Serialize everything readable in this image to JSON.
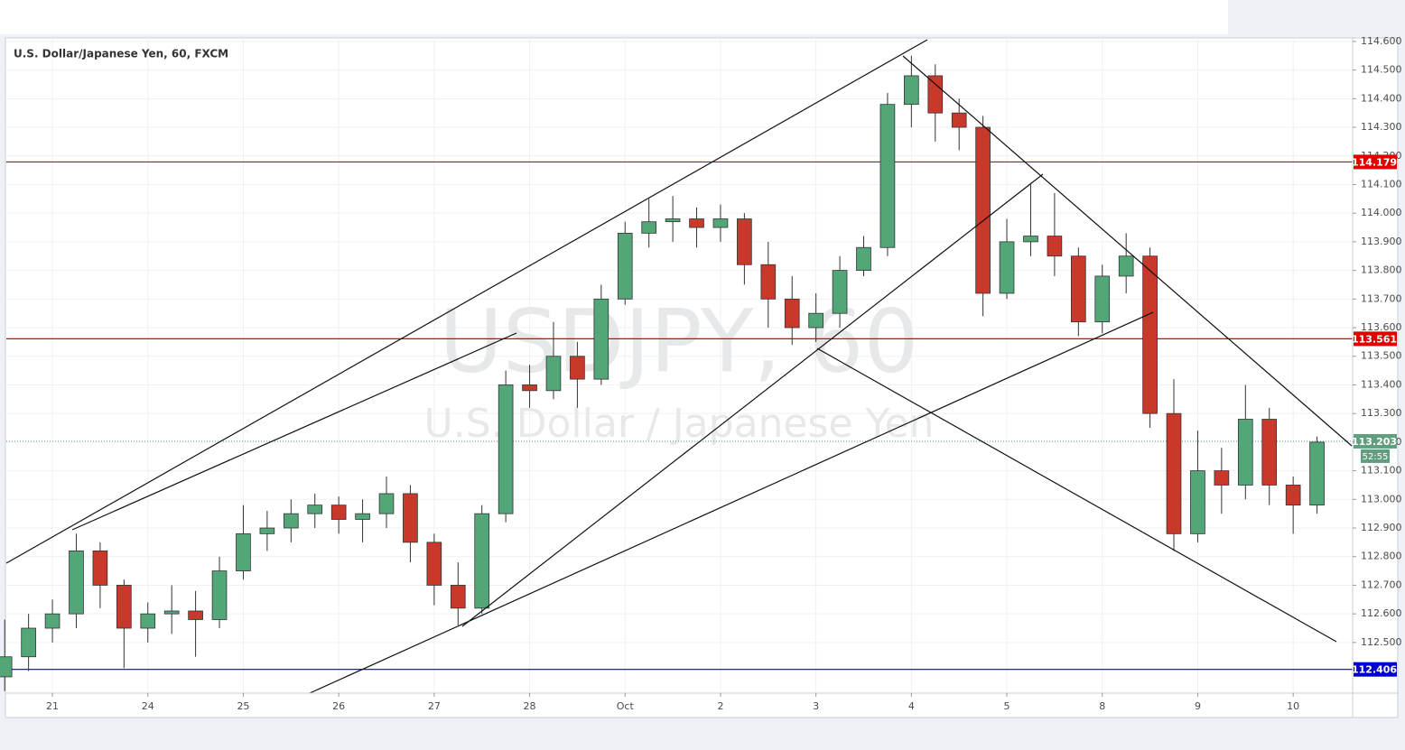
{
  "chart_data": {
    "type": "candlestick",
    "title": "U.S. Dollar/Japanese Yen, 60, FXCM",
    "watermark": {
      "symbol": "USDJPY, 60",
      "name": "U.S. Dollar / Japanese Yen"
    },
    "up_color": "#53a677",
    "down_color": "#c8382b",
    "x": [
      -0.5,
      -0.25,
      0,
      0.25,
      0.5,
      0.75,
      1,
      1.25,
      1.5,
      1.75,
      2,
      2.25,
      2.5,
      2.75,
      3,
      3.25,
      3.5,
      3.75,
      4,
      4.25,
      4.5,
      4.75,
      5,
      5.25,
      5.5,
      5.75,
      6,
      6.25,
      6.5,
      6.75,
      7,
      7.25,
      7.5,
      7.75,
      8,
      8.25,
      8.5,
      8.75,
      9,
      9.25,
      9.5,
      9.75,
      10,
      10.25,
      10.5,
      10.75,
      11,
      11.25,
      11.5,
      11.75,
      12,
      12.25,
      12.5,
      12.75,
      13,
      13.25
    ],
    "open": [
      112.38,
      112.45,
      112.55,
      112.6,
      112.82,
      112.7,
      112.55,
      112.6,
      112.61,
      112.58,
      112.75,
      112.88,
      112.9,
      112.95,
      112.98,
      112.93,
      112.95,
      113.02,
      112.85,
      112.7,
      112.62,
      112.95,
      113.4,
      113.38,
      113.5,
      113.42,
      113.7,
      113.93,
      113.97,
      113.98,
      113.95,
      113.98,
      113.82,
      113.7,
      113.6,
      113.65,
      113.8,
      113.88,
      114.38,
      114.48,
      114.35,
      114.3,
      113.72,
      113.9,
      113.92,
      113.85,
      113.62,
      113.78,
      113.85,
      113.3,
      112.88,
      113.1,
      113.05,
      113.28,
      113.05,
      112.98
    ],
    "high": [
      112.58,
      112.6,
      112.65,
      112.88,
      112.85,
      112.72,
      112.64,
      112.7,
      112.68,
      112.8,
      112.98,
      112.96,
      113.0,
      113.02,
      113.01,
      113.0,
      113.08,
      113.05,
      112.88,
      112.78,
      112.98,
      113.45,
      113.47,
      113.62,
      113.55,
      113.75,
      113.97,
      114.05,
      114.06,
      114.02,
      114.03,
      114.0,
      113.9,
      113.78,
      113.72,
      113.85,
      113.92,
      114.42,
      114.55,
      114.52,
      114.4,
      114.34,
      113.98,
      114.1,
      114.07,
      113.88,
      113.82,
      113.93,
      113.88,
      113.42,
      113.24,
      113.18,
      113.4,
      113.32,
      113.08,
      113.22
    ],
    "low": [
      112.33,
      112.4,
      112.5,
      112.55,
      112.62,
      112.41,
      112.5,
      112.53,
      112.45,
      112.55,
      112.72,
      112.82,
      112.85,
      112.9,
      112.88,
      112.85,
      112.9,
      112.78,
      112.63,
      112.56,
      112.6,
      112.92,
      113.32,
      113.35,
      113.32,
      113.4,
      113.68,
      113.88,
      113.9,
      113.88,
      113.9,
      113.75,
      113.6,
      113.54,
      113.55,
      113.6,
      113.78,
      113.85,
      114.3,
      114.25,
      114.22,
      113.64,
      113.7,
      113.85,
      113.78,
      113.57,
      113.58,
      113.72,
      113.25,
      112.82,
      112.85,
      112.95,
      113.0,
      112.98,
      112.88,
      112.95
    ],
    "close": [
      112.45,
      112.55,
      112.6,
      112.82,
      112.7,
      112.55,
      112.6,
      112.61,
      112.58,
      112.75,
      112.88,
      112.9,
      112.95,
      112.98,
      112.93,
      112.95,
      113.02,
      112.85,
      112.7,
      112.62,
      112.95,
      113.4,
      113.38,
      113.5,
      113.42,
      113.7,
      113.93,
      113.97,
      113.98,
      113.95,
      113.98,
      113.82,
      113.7,
      113.6,
      113.65,
      113.8,
      113.88,
      114.38,
      114.48,
      114.35,
      114.3,
      113.72,
      113.9,
      113.92,
      113.85,
      113.62,
      113.78,
      113.85,
      113.3,
      112.88,
      113.1,
      113.05,
      113.28,
      113.05,
      112.98,
      113.2
    ],
    "xlim": [
      -0.483,
      13.623
    ],
    "xticks": [
      {
        "value": 0,
        "label": "21"
      },
      {
        "value": 1,
        "label": "24"
      },
      {
        "value": 2,
        "label": "25"
      },
      {
        "value": 3,
        "label": "26"
      },
      {
        "value": 4,
        "label": "27"
      },
      {
        "value": 5,
        "label": "28"
      },
      {
        "value": 6,
        "label": "Oct"
      },
      {
        "value": 7,
        "label": "2"
      },
      {
        "value": 8,
        "label": "3"
      },
      {
        "value": 9,
        "label": "4"
      },
      {
        "value": 10,
        "label": "5"
      },
      {
        "value": 11,
        "label": "8"
      },
      {
        "value": 12,
        "label": "9"
      },
      {
        "value": 13,
        "label": "10"
      }
    ],
    "ylim": [
      112.323,
      114.606
    ],
    "yticks": [
      {
        "value": 112.5,
        "label": "112.500"
      },
      {
        "value": 112.6,
        "label": "112.600"
      },
      {
        "value": 112.7,
        "label": "112.700"
      },
      {
        "value": 112.8,
        "label": "112.800"
      },
      {
        "value": 112.9,
        "label": "112.900"
      },
      {
        "value": 113.0,
        "label": "113.000"
      },
      {
        "value": 113.1,
        "label": "113.100"
      },
      {
        "value": 113.2,
        "label": "113.200"
      },
      {
        "value": 113.3,
        "label": "113.300"
      },
      {
        "value": 113.4,
        "label": "113.400"
      },
      {
        "value": 113.5,
        "label": "113.500"
      },
      {
        "value": 113.6,
        "label": "113.600"
      },
      {
        "value": 113.7,
        "label": "113.700"
      },
      {
        "value": 113.8,
        "label": "113.800"
      },
      {
        "value": 113.9,
        "label": "113.900"
      },
      {
        "value": 114.0,
        "label": "114.000"
      },
      {
        "value": 114.1,
        "label": "114.100"
      },
      {
        "value": 114.2,
        "label": "114.200"
      },
      {
        "value": 114.3,
        "label": "114.300"
      },
      {
        "value": 114.4,
        "label": "114.400"
      },
      {
        "value": 114.5,
        "label": "114.500"
      },
      {
        "value": 114.6,
        "label": "114.600"
      }
    ],
    "grid": true,
    "levels": [
      {
        "value": 114.179,
        "color": "#e00000",
        "style": "solid"
      },
      {
        "value": 113.561,
        "color": "#e00000",
        "style": "solid"
      },
      {
        "value": 113.203,
        "color": "#5f9e7e",
        "style": "dotted",
        "countdown": "52:55"
      },
      {
        "value": 112.406,
        "color": "#0000cc",
        "style": "solid"
      }
    ]
  }
}
